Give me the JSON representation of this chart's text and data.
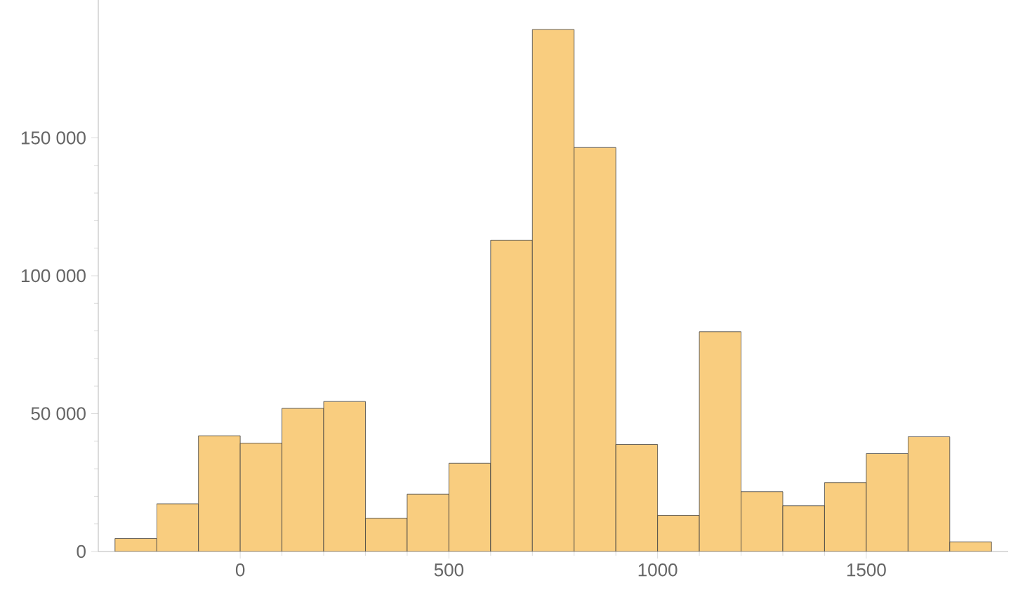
{
  "chart_data": {
    "type": "histogram",
    "bins": [
      -300,
      -200,
      -100,
      0,
      100,
      200,
      300,
      400,
      500,
      600,
      700,
      800,
      900,
      1000,
      1100,
      1200,
      1300,
      1400,
      1500,
      1600,
      1700,
      1800
    ],
    "values": [
      4700,
      17300,
      42000,
      39300,
      51900,
      54400,
      12100,
      20800,
      32000,
      112900,
      189300,
      146500,
      38800,
      13100,
      79700,
      21700,
      16600,
      25000,
      35500,
      41600,
      3500
    ],
    "color": "#f9cd7f",
    "xlim": [
      -340,
      1840
    ],
    "ylim": [
      0,
      200000
    ],
    "xticks": [
      0,
      500,
      1000,
      1500
    ],
    "yticks": [
      0,
      {
        "value": 50000,
        "label": "50 000"
      },
      {
        "value": 100000,
        "label": "100 000"
      },
      {
        "value": 150000,
        "label": "150 000"
      }
    ],
    "grid": false
  }
}
